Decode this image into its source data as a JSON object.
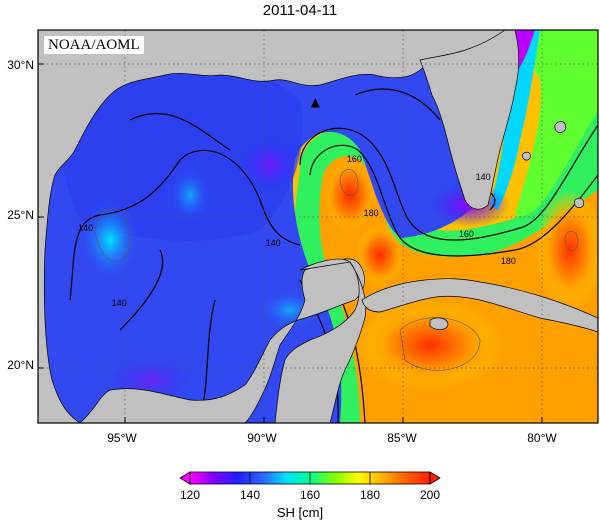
{
  "title": "2011-04-11",
  "credit": "NOAA/AOML",
  "lat_labels": [
    {
      "text": "30°N",
      "lat": 30
    },
    {
      "text": "25°N",
      "lat": 25
    },
    {
      "text": "20°N",
      "lat": 20
    }
  ],
  "lon_labels": [
    {
      "text": "95°W",
      "lon": -95
    },
    {
      "text": "90°W",
      "lon": -90
    },
    {
      "text": "85°W",
      "lon": -85
    },
    {
      "text": "80°W",
      "lon": -80
    }
  ],
  "extent": {
    "lon_min": -98.0,
    "lon_max": -78.0,
    "lat_min": 18.1,
    "lat_max": 31.2
  },
  "colorbar": {
    "title": "SH [cm]",
    "min": 120,
    "max": 200,
    "ticks": [
      "120",
      "140",
      "160",
      "180",
      "200"
    ],
    "colors": [
      "#ff00ff",
      "#8000ff",
      "#2020ff",
      "#3060ff",
      "#00e0ff",
      "#00ff90",
      "#80ff00",
      "#ffff00",
      "#ffb000",
      "#ff6000",
      "#ff2000"
    ]
  },
  "contour_labels": [
    {
      "text": "140",
      "lon": -96.3,
      "lat": 24.6
    },
    {
      "text": "140",
      "lon": -95.1,
      "lat": 22.1
    },
    {
      "text": "140",
      "lon": -89.6,
      "lat": 24.1
    },
    {
      "text": "140",
      "lon": -82.1,
      "lat": 26.3
    },
    {
      "text": "160",
      "lon": -86.7,
      "lat": 26.9
    },
    {
      "text": "160",
      "lon": -82.7,
      "lat": 24.4
    },
    {
      "text": "180",
      "lon": -86.1,
      "lat": 25.1
    },
    {
      "text": "180",
      "lon": -81.2,
      "lat": 23.5
    }
  ],
  "marker": {
    "symbol": "▲",
    "lon": -88.1,
    "lat": 28.8
  },
  "colors": {
    "land": "#c0c0c0",
    "coast": "#000000",
    "grid": "#555555"
  }
}
